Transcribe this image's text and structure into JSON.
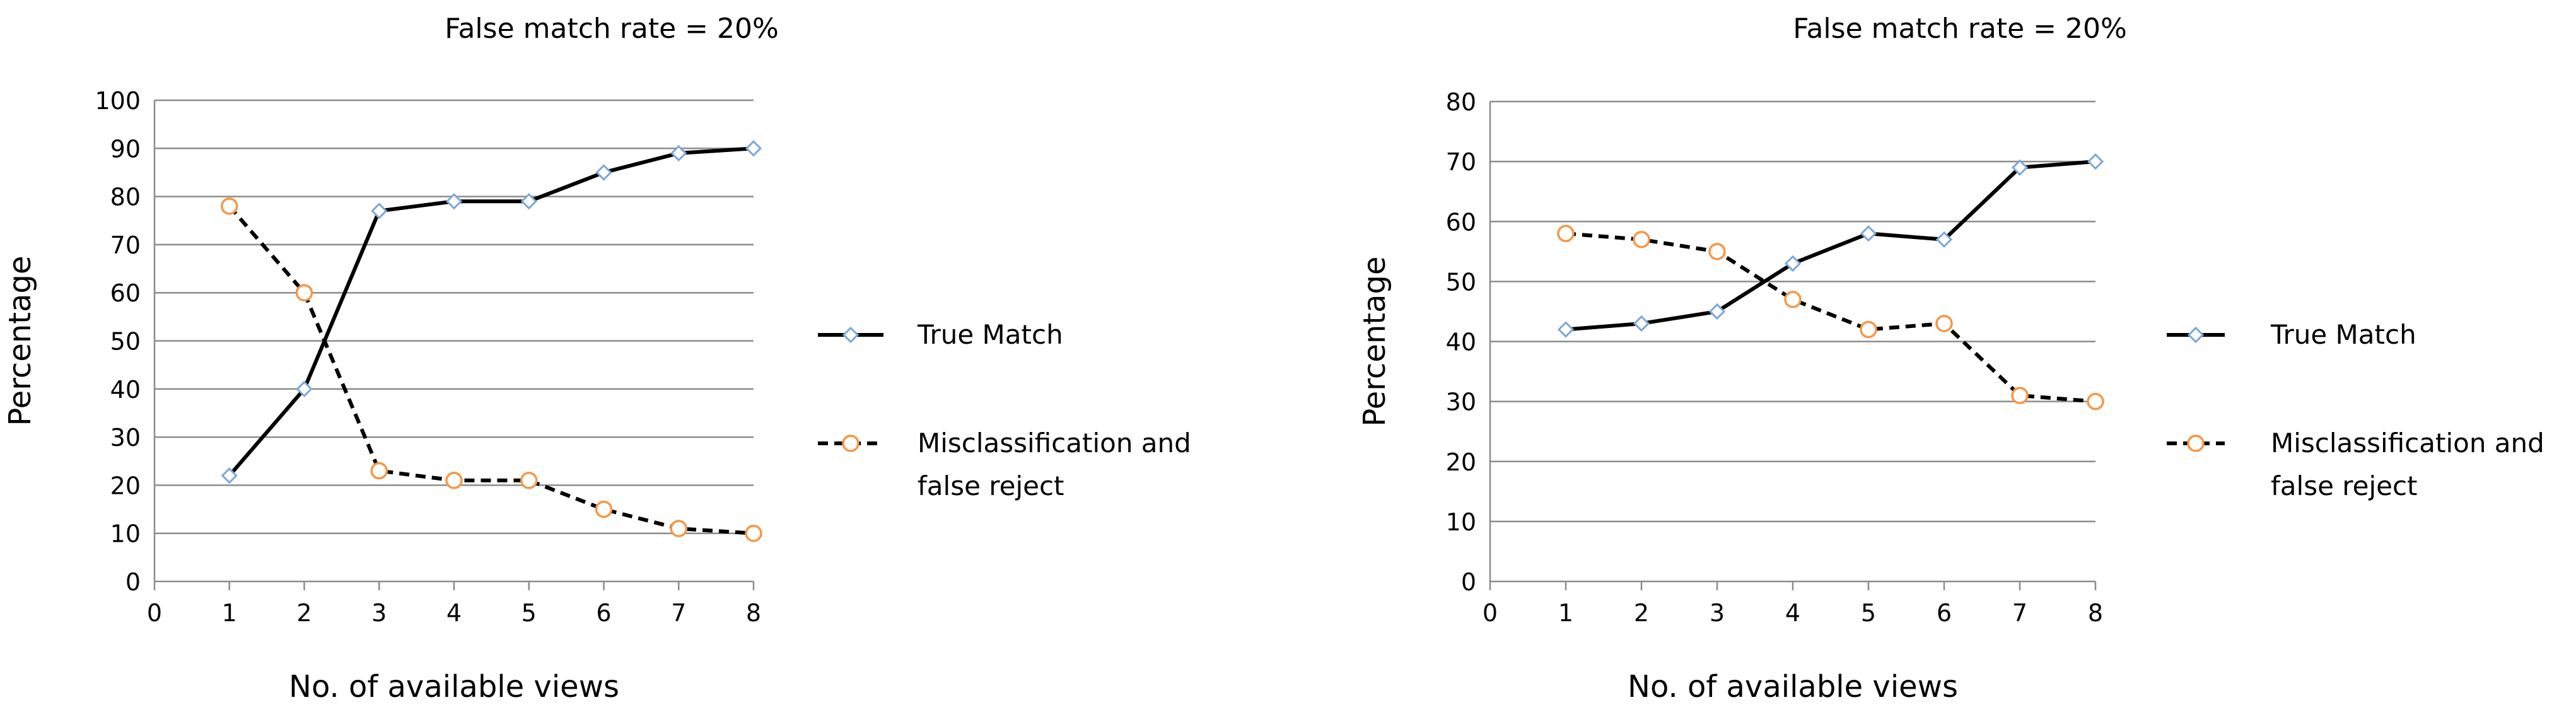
{
  "chart_data": [
    {
      "type": "line",
      "title": "False match rate = 20%",
      "xlabel": "No. of available views",
      "ylabel": "Percentage",
      "xlim": [
        0,
        8
      ],
      "ylim": [
        0,
        100
      ],
      "x_ticks": [
        "0",
        "1",
        "2",
        "3",
        "4",
        "5",
        "6",
        "7",
        "8"
      ],
      "y_ticks": [
        "0",
        "10",
        "20",
        "30",
        "40",
        "50",
        "60",
        "70",
        "80",
        "90",
        "100"
      ],
      "grid": "horizontal",
      "legend_position": "right",
      "x": [
        1,
        2,
        3,
        4,
        5,
        6,
        7,
        8
      ],
      "series": [
        {
          "name": "True Match",
          "legend_lines": [
            "True Match"
          ],
          "style": "solid",
          "marker": "diamond",
          "marker_color": "#7ba7d7",
          "values": [
            22,
            40,
            77,
            79,
            79,
            85,
            89,
            90
          ]
        },
        {
          "name": "Misclassification and false reject",
          "legend_lines": [
            "Misclassification and",
            "false reject"
          ],
          "style": "dashed",
          "marker": "circle",
          "marker_color": "#f79646",
          "values": [
            78,
            60,
            23,
            21,
            21,
            15,
            11,
            10
          ]
        }
      ]
    },
    {
      "type": "line",
      "title": "False match rate = 20%",
      "xlabel": "No. of available views",
      "ylabel": "Percentage",
      "xlim": [
        0,
        8
      ],
      "ylim": [
        0,
        80
      ],
      "x_ticks": [
        "0",
        "1",
        "2",
        "3",
        "4",
        "5",
        "6",
        "7",
        "8"
      ],
      "y_ticks": [
        "0",
        "10",
        "20",
        "30",
        "40",
        "50",
        "60",
        "70",
        "80"
      ],
      "grid": "horizontal",
      "legend_position": "right",
      "x": [
        1,
        2,
        3,
        4,
        5,
        6,
        7,
        8
      ],
      "series": [
        {
          "name": "True Match",
          "legend_lines": [
            "True Match"
          ],
          "style": "solid",
          "marker": "diamond",
          "marker_color": "#7ba7d7",
          "values": [
            42,
            43,
            45,
            53,
            58,
            57,
            69,
            70
          ]
        },
        {
          "name": "Misclassification and false reject",
          "legend_lines": [
            "Misclassification and",
            "false reject"
          ],
          "style": "dashed",
          "marker": "circle",
          "marker_color": "#f79646",
          "values": [
            58,
            57,
            55,
            47,
            42,
            43,
            31,
            30
          ]
        }
      ]
    }
  ]
}
